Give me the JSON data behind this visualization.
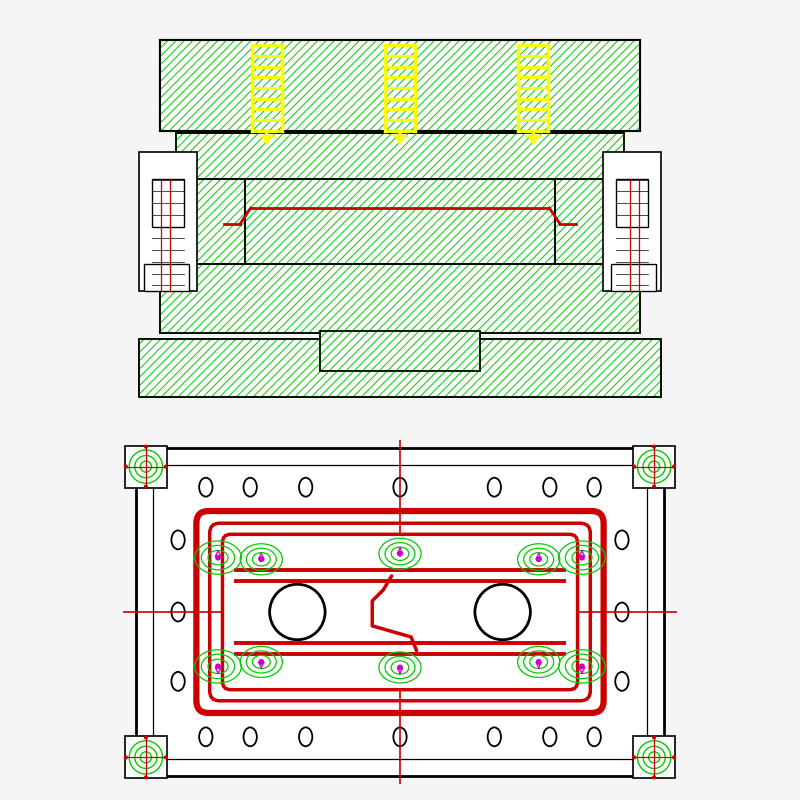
{
  "bg_color": "#f5f5f5",
  "green": "#00cc00",
  "yellow": "#ffff00",
  "red": "#cc0000",
  "black": "#000000",
  "white": "#ffffff",
  "top_view_bg": "#ffffff"
}
